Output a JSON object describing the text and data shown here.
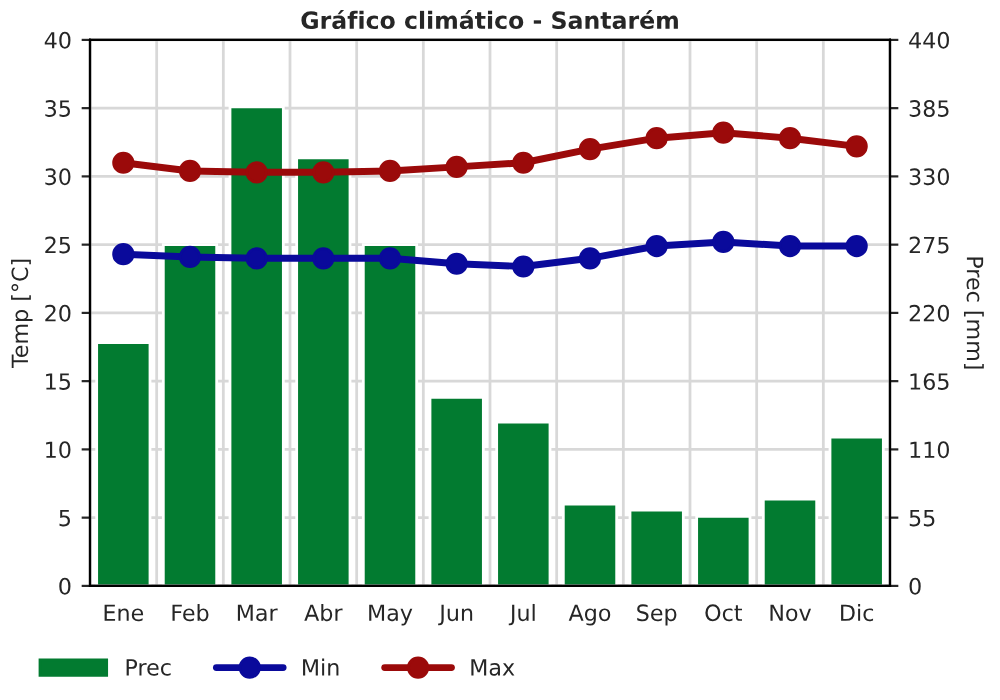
{
  "chart_data": {
    "type": "bar",
    "title": "Gráfico climático - Santarém",
    "ylabel": "Temp [°C]",
    "y2label": "Prec [mm]",
    "categories": [
      "Ene",
      "Feb",
      "Mar",
      "Abr",
      "May",
      "Jun",
      "Jul",
      "Ago",
      "Sep",
      "Oct",
      "Nov",
      "Dic"
    ],
    "series": [
      {
        "name": "Prec",
        "axis": "y2",
        "color": "#027b30",
        "values": [
          196,
          275,
          386,
          345,
          275,
          152,
          132,
          66,
          61,
          56,
          70,
          120
        ]
      },
      {
        "name": "Min",
        "type": "line",
        "color": "#0a0a9b",
        "marker": "circle",
        "values": [
          24.3,
          24.1,
          24.0,
          24.0,
          24.0,
          23.6,
          23.4,
          24.0,
          24.9,
          25.2,
          24.9,
          24.9
        ]
      },
      {
        "name": "Max",
        "type": "line",
        "color": "#9b0a0a",
        "marker": "circle",
        "values": [
          31.0,
          30.4,
          30.3,
          30.3,
          30.4,
          30.7,
          31.0,
          32.0,
          32.8,
          33.2,
          32.8,
          32.2
        ]
      }
    ],
    "ylim": [
      0,
      40
    ],
    "yticks": [
      0,
      5,
      10,
      15,
      20,
      25,
      30,
      35,
      40
    ],
    "y2lim": [
      0,
      440
    ],
    "y2ticks": [
      0,
      55,
      110,
      165,
      220,
      275,
      330,
      385,
      440
    ],
    "grid": true,
    "legend": "bottom",
    "line_style": "solid"
  }
}
